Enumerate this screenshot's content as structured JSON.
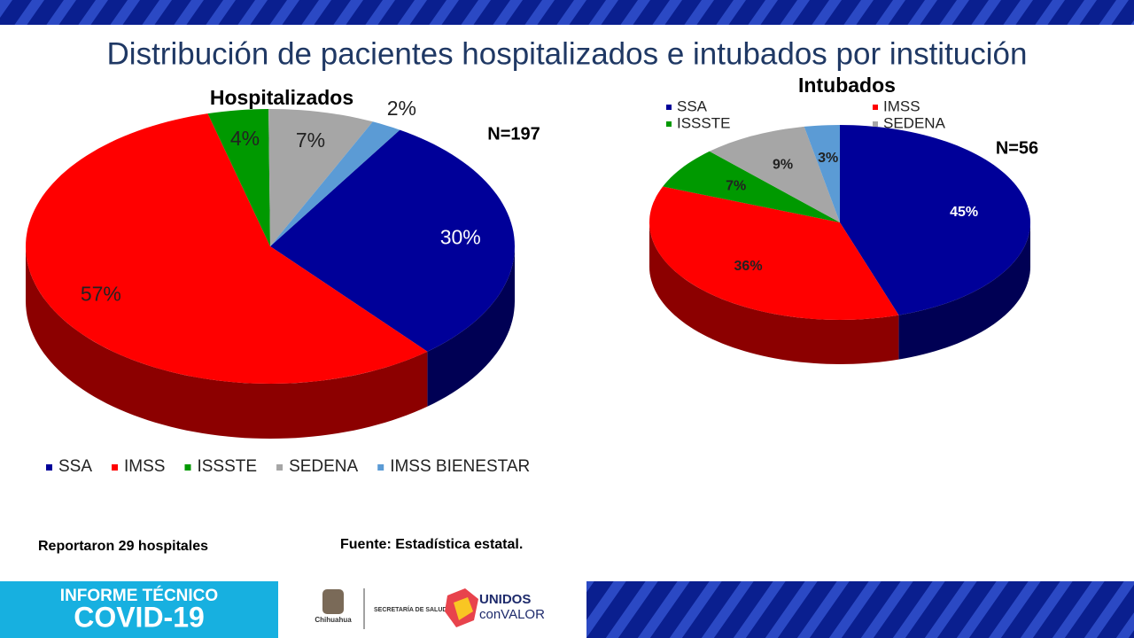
{
  "page_title": "Distribución de pacientes hospitalizados e intubados por institución",
  "notes": [
    "Reportaron 29 hospitales",
    "Fuente: Estadística estatal."
  ],
  "banner": {
    "line1": "INFORME TÉCNICO",
    "line2": "COVID-19",
    "state": "Chihuahua",
    "agency": "SECRETARÍA DE SALUD",
    "slogan1": "UNIDOS",
    "slogan2": "conVALOR"
  },
  "chart_data": [
    {
      "type": "pie",
      "title": "Hospitalizados",
      "annotation": "N=197",
      "categories": [
        "SSA",
        "IMSS",
        "ISSSTE",
        "SEDENA",
        "IMSS BIENESTAR"
      ],
      "values": [
        30,
        57,
        4,
        7,
        2
      ],
      "value_labels": [
        "30%",
        "57%",
        "4%",
        "7%",
        "2%"
      ],
      "colors": [
        "#000099",
        "#ff0000",
        "#009900",
        "#a6a6a6",
        "#5b9bd5"
      ],
      "legend": "bottom"
    },
    {
      "type": "pie",
      "title": "Intubados",
      "annotation": "N=56",
      "categories": [
        "SSA",
        "IMSS",
        "ISSSTE",
        "SEDENA",
        "IMSS BIENESTAR"
      ],
      "values": [
        45,
        36,
        7,
        9,
        3
      ],
      "value_labels": [
        "45%",
        "36%",
        "7%",
        "9%",
        "3%"
      ],
      "colors": [
        "#000099",
        "#ff0000",
        "#009900",
        "#a6a6a6",
        "#5b9bd5"
      ],
      "legend_labels": [
        "SSA",
        "IMSS",
        "ISSSTE",
        "SEDENA"
      ],
      "legend": "top"
    }
  ]
}
